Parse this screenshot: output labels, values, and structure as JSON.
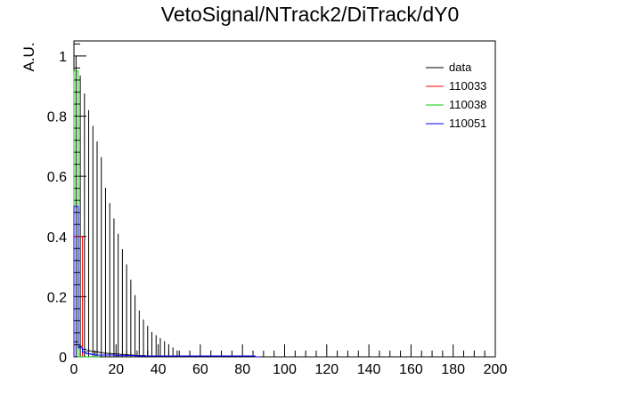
{
  "chart_data": {
    "type": "histogram",
    "title": "VetoSignal/NTrack2/DiTrack/dY0",
    "xlabel": "",
    "ylabel": "A.U.",
    "xlim": [
      0,
      200
    ],
    "ylim": [
      0,
      1.05
    ],
    "x_ticks": [
      0,
      20,
      40,
      60,
      80,
      100,
      120,
      140,
      160,
      180,
      200
    ],
    "y_ticks": [
      0,
      0.2,
      0.4,
      0.6,
      0.8,
      1
    ],
    "y_tick_labels": [
      "0",
      "0.2",
      "0.4",
      "0.6",
      "0.8",
      "1"
    ],
    "grid": false,
    "legend_position": "top-right",
    "bin_width": 2,
    "series": [
      {
        "name": "data",
        "color": "#000000",
        "style": "errorbar",
        "x": [
          1,
          3,
          5,
          7,
          9,
          11,
          13,
          15,
          17,
          19,
          21,
          23,
          25,
          27,
          29,
          31,
          33,
          35,
          37,
          39,
          41,
          43,
          45,
          47,
          49
        ],
        "values": [
          0.05,
          0.035,
          0.025,
          0.02,
          0.018,
          0.016,
          0.014,
          0.012,
          0.011,
          0.01,
          0.009,
          0.008,
          0.007,
          0.006,
          0.005,
          0.004,
          0.004,
          0.003,
          0.003,
          0.002,
          0.002,
          0.002,
          0.002,
          0.001,
          0.001
        ],
        "errors": [
          0.95,
          0.9,
          0.85,
          0.8,
          0.75,
          0.7,
          0.65,
          0.55,
          0.5,
          0.45,
          0.4,
          0.35,
          0.3,
          0.25,
          0.2,
          0.15,
          0.12,
          0.1,
          0.08,
          0.07,
          0.06,
          0.05,
          0.04,
          0.03,
          0.02
        ]
      },
      {
        "name": "110033",
        "color": "#ff0000",
        "style": "step",
        "x": [
          0,
          2,
          4,
          6,
          8,
          10
        ],
        "values": [
          0.4,
          0.4,
          0.0,
          0.0,
          0.0,
          0.0
        ]
      },
      {
        "name": "110038",
        "color": "#00cc00",
        "style": "step",
        "x": [
          0,
          2,
          4,
          6,
          8,
          10
        ],
        "values": [
          0.95,
          0.0,
          0.0,
          0.0,
          0.0,
          0.0
        ]
      },
      {
        "name": "110051",
        "color": "#0000ff",
        "style": "step",
        "x": [
          0,
          2,
          4,
          6,
          8,
          10,
          20,
          30,
          40,
          50,
          60,
          70,
          80,
          86
        ],
        "values": [
          0.5,
          0.03,
          0.015,
          0.01,
          0.008,
          0.006,
          0.004,
          0.003,
          0.003,
          0.003,
          0.003,
          0.003,
          0.003,
          0.0
        ]
      }
    ]
  }
}
